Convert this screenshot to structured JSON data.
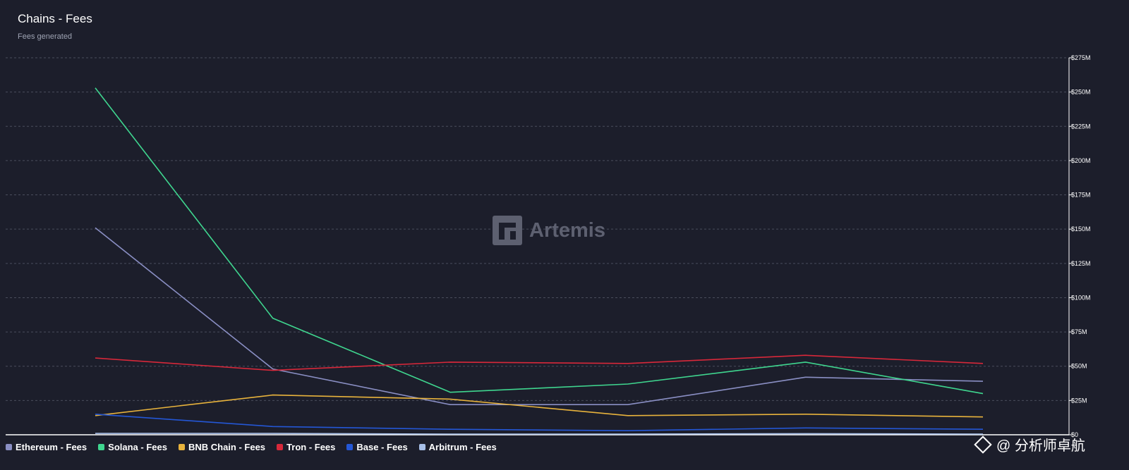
{
  "title": "Chains - Fees",
  "subtitle": "Fees generated",
  "watermark": "Artemis",
  "credit": "@ 分析师卓航",
  "colors": {
    "background": "#1c1e2b",
    "grid": "#4a4d5c",
    "Ethereum": "#8a8fc4",
    "Solana": "#3fd68f",
    "BNB Chain": "#e8b33c",
    "Tron": "#d8283a",
    "Base": "#2457d6",
    "Arbitrum": "#a7bfe8"
  },
  "legend": [
    {
      "label": "Ethereum - Fees",
      "color": "#8a8fc4"
    },
    {
      "label": "Solana - Fees",
      "color": "#3fd68f"
    },
    {
      "label": "BNB Chain - Fees",
      "color": "#e8b33c"
    },
    {
      "label": "Tron - Fees",
      "color": "#d8283a"
    },
    {
      "label": "Base - Fees",
      "color": "#2457d6"
    },
    {
      "label": "Arbitrum - Fees",
      "color": "#a7bfe8"
    }
  ],
  "chart_data": {
    "type": "line",
    "title": "Chains - Fees",
    "subtitle": "Fees generated",
    "xlabel": "",
    "ylabel": "",
    "x": [
      1,
      2,
      3,
      4,
      5,
      6
    ],
    "ylim": [
      0,
      275
    ],
    "yticks": [
      0,
      25,
      50,
      75,
      100,
      125,
      150,
      175,
      200,
      225,
      250,
      275
    ],
    "ytick_labels": [
      "$0",
      "$25M",
      "$50M",
      "$75M",
      "$100M",
      "$125M",
      "$150M",
      "$175M",
      "$200M",
      "$225M",
      "$250M",
      "$275M"
    ],
    "y_axis_side": "right",
    "grid": true,
    "legend_position": "bottom",
    "series": [
      {
        "name": "Ethereum - Fees",
        "color": "#8a8fc4",
        "values": [
          151,
          48,
          22,
          22,
          42,
          39
        ]
      },
      {
        "name": "Solana - Fees",
        "color": "#3fd68f",
        "values": [
          253,
          85,
          31,
          37,
          53,
          30
        ]
      },
      {
        "name": "BNB Chain - Fees",
        "color": "#e8b33c",
        "values": [
          14,
          29,
          26,
          14,
          15,
          13
        ]
      },
      {
        "name": "Tron - Fees",
        "color": "#d8283a",
        "values": [
          56,
          47,
          53,
          52,
          58,
          52
        ]
      },
      {
        "name": "Base - Fees",
        "color": "#2457d6",
        "values": [
          15,
          6,
          4,
          3,
          5,
          4
        ]
      },
      {
        "name": "Arbitrum - Fees",
        "color": "#a7bfe8",
        "values": [
          1,
          1,
          0.5,
          0.5,
          0.8,
          0.5
        ]
      }
    ]
  }
}
